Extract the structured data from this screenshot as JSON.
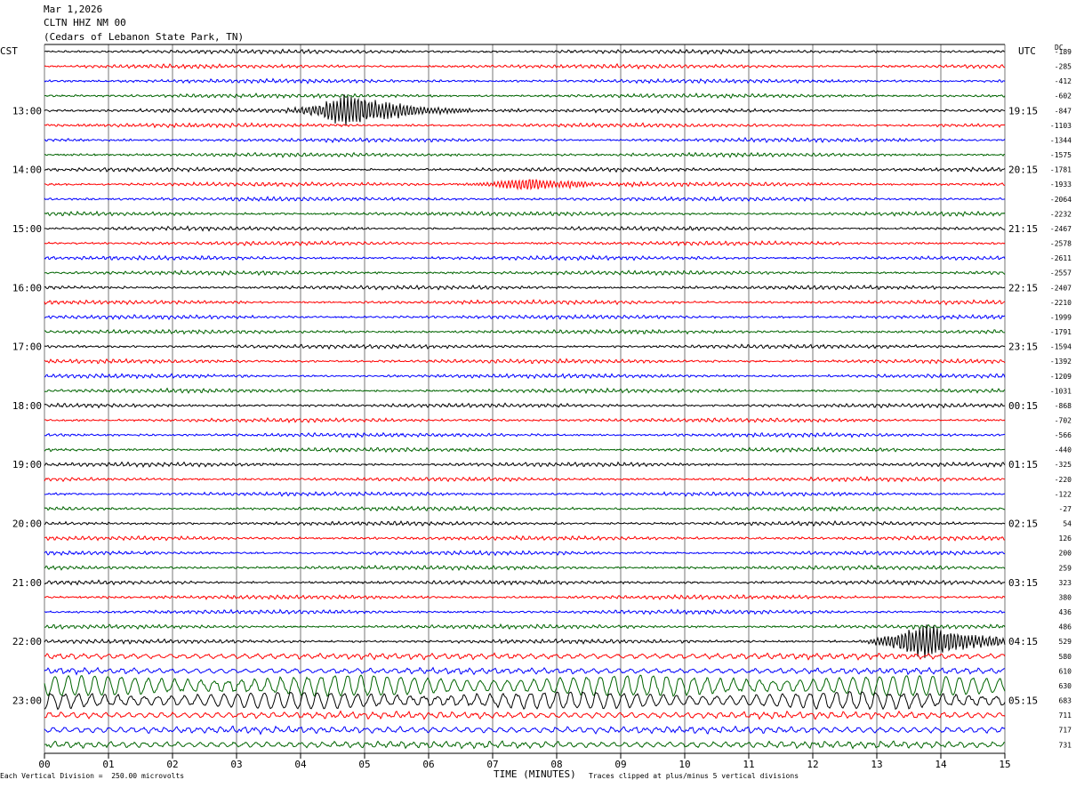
{
  "header": {
    "date": "Mar 1,2026",
    "channel": "CLTN HHZ NM 00",
    "location": "(Cedars of Lebanon State Park, TN)"
  },
  "left_timezone": "CST",
  "right_timezone": "UTC",
  "dc_label": "DC",
  "footer": {
    "scale_note": "Each Vertical Division =  250.00 microvolts",
    "axis_title": "TIME (MINUTES)",
    "clip_note": "Traces clipped at plus/minus 5 vertical divisions"
  },
  "chart_data": {
    "type": "line",
    "xlabel": "TIME (MINUTES)",
    "xlim": [
      0,
      15
    ],
    "x_ticks": [
      "00",
      "01",
      "02",
      "03",
      "04",
      "05",
      "06",
      "07",
      "08",
      "09",
      "10",
      "11",
      "12",
      "13",
      "14",
      "15"
    ],
    "trace_colors": [
      "#000000",
      "#ff0000",
      "#0000ff",
      "#006400"
    ],
    "trace_count": 48,
    "left_hour_labels": [
      "13:00",
      "14:00",
      "15:00",
      "16:00",
      "17:00",
      "18:00",
      "19:00",
      "20:00",
      "21:00",
      "22:00",
      "23:00"
    ],
    "right_hour_labels": [
      "19:15",
      "20:15",
      "21:15",
      "22:15",
      "23:15",
      "00:15",
      "01:15",
      "02:15",
      "03:15",
      "04:15",
      "05:15"
    ],
    "dc_offsets": [
      "-189",
      "-285",
      "-412",
      "-602",
      "-847",
      "-1103",
      "-1344",
      "-1575",
      "-1781",
      "-1933",
      "-2064",
      "-2232",
      "-2467",
      "-2578",
      "-2611",
      "-2557",
      "-2407",
      "-2210",
      "-1999",
      "-1791",
      "-1594",
      "-1392",
      "-1209",
      "-1031",
      "-868",
      "-702",
      "-566",
      "-440",
      "-325",
      "-220",
      "-122",
      "-27",
      "54",
      "126",
      "200",
      "259",
      "323",
      "380",
      "436",
      "486",
      "529",
      "580",
      "610",
      "630",
      "683",
      "711",
      "717",
      "731"
    ],
    "events": [
      {
        "trace": 4,
        "minute_start": 4.7,
        "minute_end": 5.4,
        "amplitude": "large"
      },
      {
        "trace": 9,
        "minute_start": 7.5,
        "minute_end": 7.9,
        "amplitude": "small"
      },
      {
        "trace": 40,
        "minute_start": 13.7,
        "minute_end": 14.2,
        "amplitude": "large"
      }
    ]
  }
}
